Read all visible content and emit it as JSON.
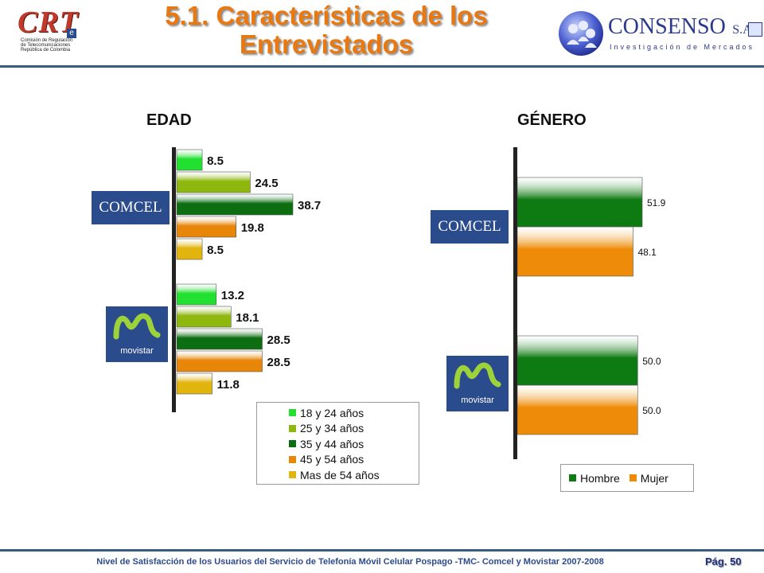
{
  "header": {
    "title_line1": "5.1. Características de los",
    "title_line2": "Entrevistados",
    "crt_logo": {
      "mark": "CRT",
      "sub1": "Comisión de Regulación",
      "sub2": "de Telecomunicaciones",
      "sub3": "República de Colombia"
    },
    "consenso_logo": {
      "name": "CONSENSO",
      "suffix": "S.A.",
      "tagline": "Investigación de Mercados"
    }
  },
  "brands": {
    "comcel": "COMCEL",
    "movistar": "movistar"
  },
  "footer": {
    "text": "Nivel de Satisfacción de los Usuarios del Servicio de Telefonía Móvil Celular Pospago -TMC- Comcel y Movistar 2007-2008",
    "page": "Pág. 50"
  },
  "colors": {
    "age_18_24": "#22e030",
    "age_25_34": "#8fb80e",
    "age_35_44": "#0c6e10",
    "age_45_54": "#e8860a",
    "age_55p": "#e2b40e",
    "hombre": "#0e7a12",
    "mujer": "#ee8c0a",
    "title": "#e8780f",
    "brand_bg": "#2b4c8c"
  },
  "chart_data": [
    {
      "type": "bar",
      "orientation": "horizontal",
      "title": "EDAD",
      "groups": [
        "COMCEL",
        "movistar"
      ],
      "series": [
        {
          "name": "18 y 24 años",
          "values": [
            8.5,
            13.2
          ]
        },
        {
          "name": "25 y 34 años",
          "values": [
            24.5,
            18.1
          ]
        },
        {
          "name": "35 y 44 años",
          "values": [
            38.7,
            28.5
          ]
        },
        {
          "name": "45 y 54 años",
          "values": [
            19.8,
            28.5
          ]
        },
        {
          "name": "Mas de 54 años",
          "values": [
            8.5,
            11.8
          ]
        }
      ],
      "legend_position": "bottom-right"
    },
    {
      "type": "bar",
      "orientation": "horizontal",
      "title": "GÉNERO",
      "groups": [
        "COMCEL",
        "movistar"
      ],
      "series": [
        {
          "name": "Hombre",
          "values": [
            51.9,
            50.0
          ]
        },
        {
          "name": "Mujer",
          "values": [
            48.1,
            50.0
          ]
        }
      ],
      "legend_position": "bottom"
    }
  ]
}
